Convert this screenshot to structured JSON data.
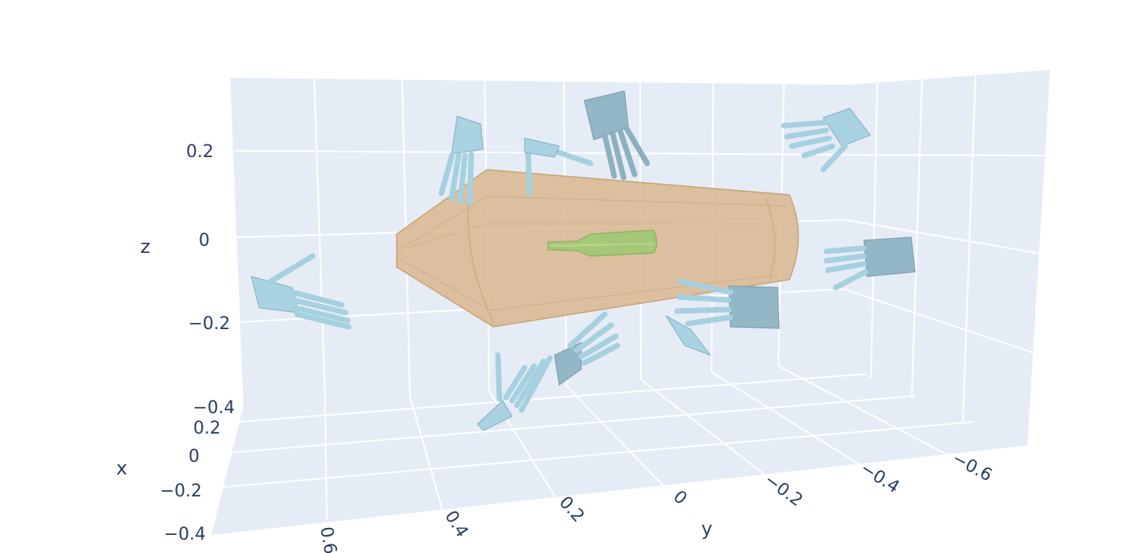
{
  "chart_data": {
    "type": "scatter3d",
    "title": "",
    "axes": {
      "x": {
        "title": "x",
        "ticks": [
          "0.2",
          "0",
          "−0.2",
          "−0.4"
        ]
      },
      "y": {
        "title": "y",
        "ticks": [
          "0.6",
          "0.4",
          "0.2",
          "0",
          "−0.2",
          "−0.4",
          "−0.6"
        ]
      },
      "z": {
        "title": "z",
        "ticks": [
          "0.2",
          "0",
          "−0.2",
          "−0.4"
        ]
      }
    },
    "grid": true,
    "background_color": "#e5ecf6",
    "meshes": [
      {
        "name": "object",
        "color": "#a5c878",
        "count": 1
      },
      {
        "name": "grasp-region",
        "color": "#d8b48a",
        "opacity": 0.75,
        "count": 1
      },
      {
        "name": "hand",
        "color": "#add8e6",
        "count": 12
      }
    ]
  }
}
